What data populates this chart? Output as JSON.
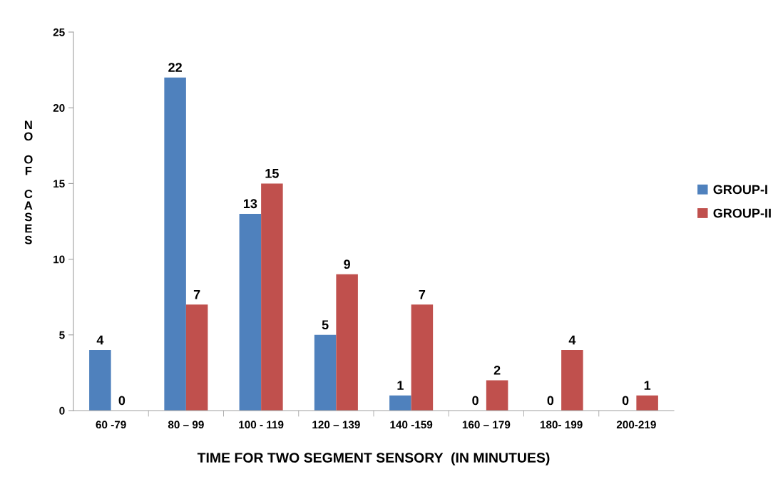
{
  "chart_data": {
    "type": "bar",
    "xlabel": "TIME FOR TWO SEGMENT SENSORY  (IN MINUTUES)",
    "ylabel": "NO OF CASES",
    "categories": [
      "60 -79",
      "80 – 99",
      "100 - 119",
      "120 – 139",
      "140 -159",
      "160 – 179",
      "180- 199",
      "200-219"
    ],
    "series": [
      {
        "name": "GROUP-I",
        "color": "#4f81bd",
        "values": [
          4,
          22,
          13,
          5,
          1,
          0,
          0,
          0
        ]
      },
      {
        "name": "GROUP-II",
        "color": "#c0504d",
        "values": [
          0,
          7,
          15,
          9,
          7,
          2,
          4,
          1
        ]
      }
    ],
    "ylim": [
      0,
      25
    ],
    "yticks": [
      0,
      5,
      10,
      15,
      20,
      25
    ],
    "grid": false,
    "legend": "right",
    "data_labels": true
  }
}
